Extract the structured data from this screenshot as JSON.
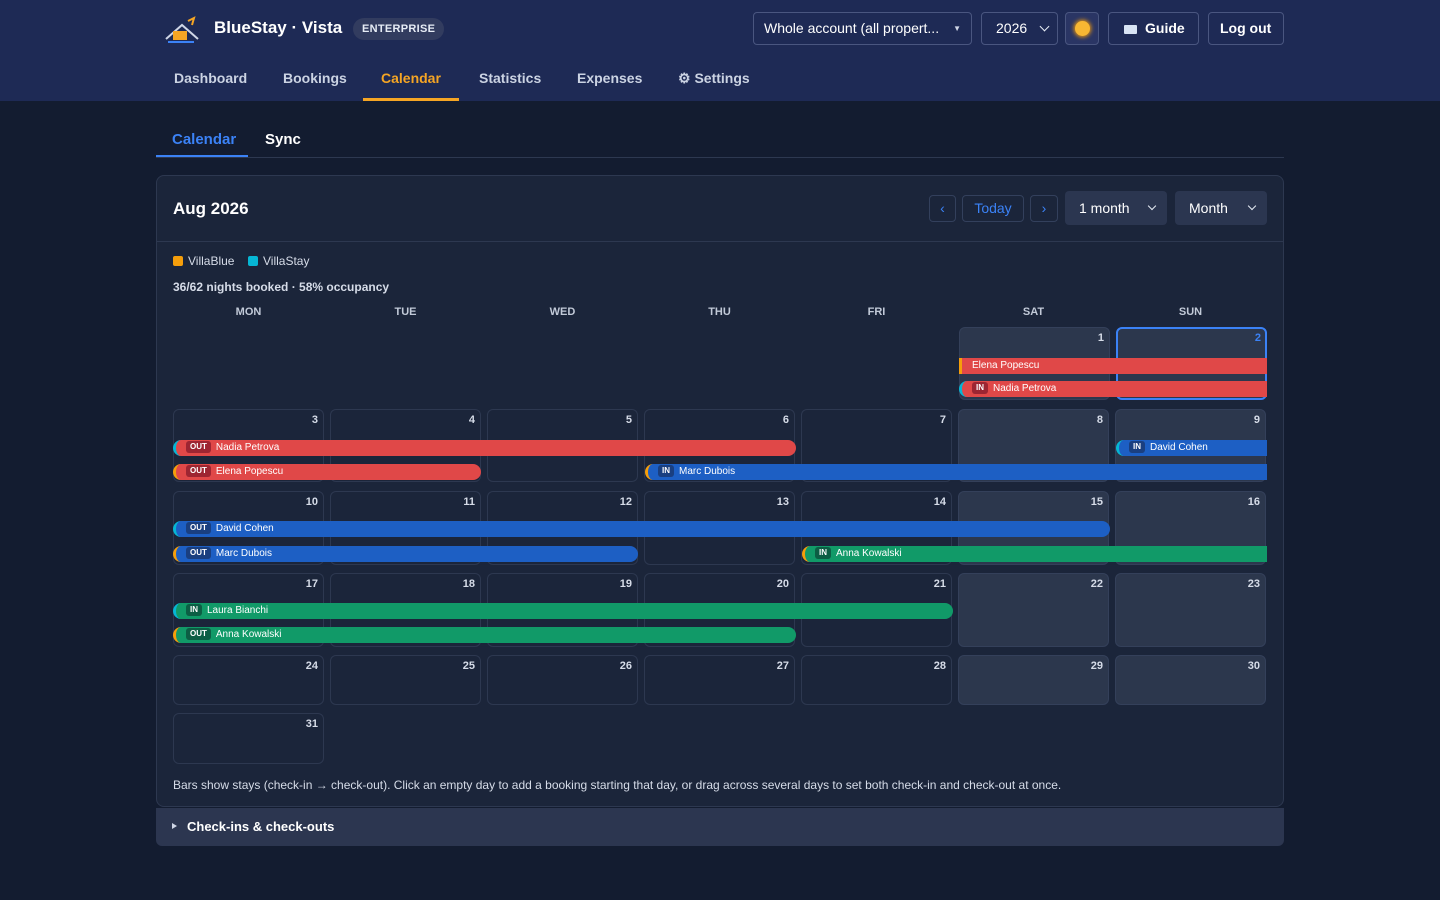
{
  "app": {
    "brand": "BlueStay · Vista",
    "badge": "ENTERPRISE"
  },
  "header": {
    "property_select": "Whole account (all propert...",
    "year_select": "2026",
    "theme_icon": "sun-icon",
    "guide_label": "Guide",
    "logout_label": "Log out"
  },
  "nav": {
    "dashboard": "Dashboard",
    "bookings": "Bookings",
    "calendar": "Calendar",
    "statistics": "Statistics",
    "expenses": "Expenses",
    "settings": "⚙ Settings",
    "active": "Calendar"
  },
  "subtabs": {
    "calendar": "Calendar",
    "sync": "Sync"
  },
  "cal": {
    "month_title": "Aug 2026",
    "prev": "‹",
    "today": "Today",
    "next": "›",
    "range_select": "1 month",
    "view_select": "Month",
    "legend": [
      {
        "label": "VillaBlue",
        "color": "#f59e0b"
      },
      {
        "label": "VillaStay",
        "color": "#06b6d4"
      }
    ],
    "occupancy": "36/62 nights booked · 58% occupancy",
    "weekdays": [
      "MON",
      "TUE",
      "WED",
      "THU",
      "FRI",
      "SAT",
      "SUN"
    ],
    "days": [
      "1",
      "2",
      "3",
      "4",
      "5",
      "6",
      "7",
      "8",
      "9",
      "10",
      "11",
      "12",
      "13",
      "14",
      "15",
      "16",
      "17",
      "18",
      "19",
      "20",
      "21",
      "22",
      "23",
      "24",
      "25",
      "26",
      "27",
      "28",
      "29",
      "30",
      "31"
    ],
    "tag_in": "IN",
    "tag_out": "OUT",
    "bookings": {
      "elena_popescu": "Elena Popescu",
      "nadia_petrova": "Nadia Petrova",
      "david_cohen": "David Cohen",
      "marc_dubois": "Marc Dubois",
      "anna_kowalski": "Anna Kowalski",
      "laura_bianchi": "Laura Bianchi"
    },
    "footnote": "Bars show stays (check-in → check-out). Click an empty day to add a booking starting that day, or drag across several days to set both check-in and check-out at once.",
    "checkins_title": "Check-ins & check-outs"
  }
}
